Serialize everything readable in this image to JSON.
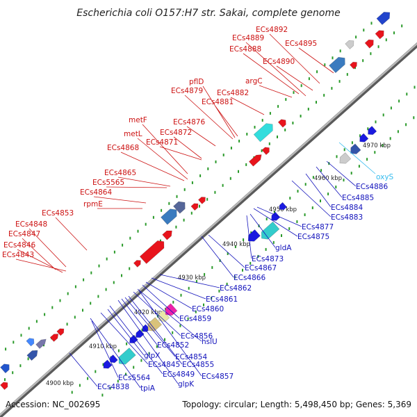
{
  "title": "Escherichia coli O157:H7 str. Sakai, complete genome",
  "footer": {
    "accession": "Accession: NC_002695",
    "stats": "Topology: circular; Length: 5,498,450 bp; Genes: 5,369"
  },
  "ticks": [
    "4900 kbp",
    "4910 kbp",
    "4920 kbp",
    "4930 kbp",
    "4940 kbp",
    "4950 kbp",
    "4960 kbp",
    "4970 kbp"
  ],
  "labels_forward": [
    "ECs4843",
    "ECs4846",
    "ECs4847",
    "ECs4848",
    "ECs4853",
    "rpmE",
    "ECs4864",
    "ECs5565",
    "ECs4865",
    "ECs4868",
    "metL",
    "metF",
    "ECs4871",
    "ECs4872",
    "ECs4876",
    "ECs4879",
    "pflD",
    "ECs4881",
    "ECs4882",
    "argC",
    "ECs4888",
    "ECs4889",
    "ECs4890",
    "ECs4892",
    "ECs4895"
  ],
  "labels_reverse": [
    "ECs4838",
    "tpiA",
    "ECs5564",
    "ECs4845",
    "glpX",
    "ECs4849",
    "glpK",
    "ECs4852",
    "ECs4854",
    "ECs4855",
    "ECs4856",
    "hslU",
    "ECs4857",
    "ECs4859",
    "ECs4860",
    "ECs4861",
    "ECs4862",
    "ECs4866",
    "ECs4867",
    "ECs4873",
    "gldA",
    "ECs4875",
    "ECs4877",
    "ECs4883",
    "ECs4884",
    "ECs4885",
    "ECs4886"
  ],
  "label_highlight": "oxyS",
  "colors": {
    "forward": "#e8141c",
    "reverse": "#1a1ae0",
    "forward_label": "#cc1111",
    "reverse_label": "#1111bb",
    "highlight": "#33bbee",
    "backbone": "#8a8a8a",
    "tick_dot": "#2a9a2a"
  }
}
